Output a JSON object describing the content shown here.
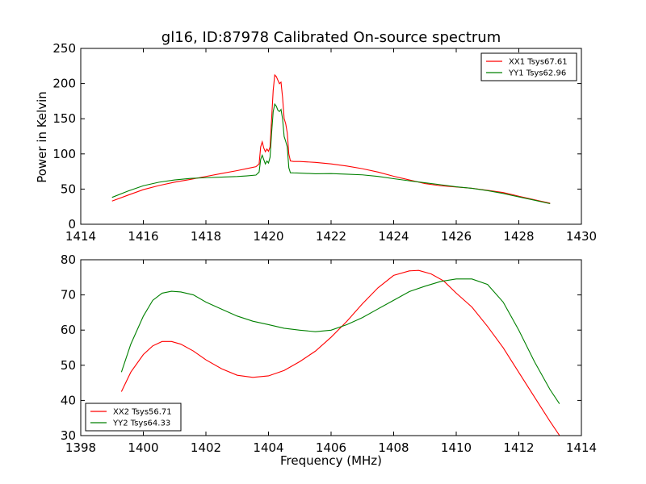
{
  "title": "gl16, ID:87978 Calibrated On-source spectrum",
  "colors": {
    "xx": "#ff0000",
    "yy": "#008000"
  },
  "chart_data": [
    {
      "type": "line",
      "xlim": [
        1414,
        1430
      ],
      "ylim": [
        0,
        250
      ],
      "xticks": [
        1414,
        1416,
        1418,
        1420,
        1422,
        1424,
        1426,
        1428,
        1430
      ],
      "yticks": [
        0,
        50,
        100,
        150,
        200,
        250
      ],
      "xlabel": "",
      "ylabel": "Power in Kelvin",
      "legend_position": "top-right",
      "series": [
        {
          "name": "XX1 Tsys67.61",
          "color": "#ff0000",
          "x": [
            1415.0,
            1415.5,
            1416.0,
            1416.5,
            1417.0,
            1417.5,
            1418.0,
            1418.5,
            1419.0,
            1419.3,
            1419.6,
            1419.7,
            1419.75,
            1419.8,
            1419.85,
            1419.9,
            1419.95,
            1420.0,
            1420.05,
            1420.1,
            1420.15,
            1420.2,
            1420.25,
            1420.3,
            1420.35,
            1420.4,
            1420.45,
            1420.5,
            1420.55,
            1420.6,
            1420.65,
            1420.7,
            1420.8,
            1421.0,
            1421.5,
            1422.0,
            1422.5,
            1423.0,
            1423.5,
            1424.0,
            1424.5,
            1425.0,
            1425.5,
            1426.0,
            1426.5,
            1427.0,
            1427.5,
            1428.0,
            1428.5,
            1429.0
          ],
          "y": [
            33,
            41,
            49,
            55,
            60,
            64,
            68,
            72,
            76,
            79,
            82,
            86,
            110,
            117,
            108,
            103,
            107,
            104,
            110,
            150,
            190,
            212,
            210,
            205,
            200,
            202,
            180,
            150,
            143,
            130,
            100,
            90,
            89,
            89,
            88,
            86,
            83,
            79,
            74,
            68,
            63,
            58,
            55,
            53,
            51,
            48,
            45,
            40,
            35,
            30
          ]
        },
        {
          "name": "YY1 Tsys62.96",
          "color": "#008000",
          "x": [
            1415.0,
            1415.5,
            1416.0,
            1416.5,
            1417.0,
            1417.5,
            1418.0,
            1418.5,
            1419.0,
            1419.3,
            1419.6,
            1419.7,
            1419.75,
            1419.8,
            1419.85,
            1419.9,
            1419.95,
            1420.0,
            1420.05,
            1420.1,
            1420.15,
            1420.2,
            1420.25,
            1420.3,
            1420.35,
            1420.4,
            1420.45,
            1420.5,
            1420.55,
            1420.6,
            1420.65,
            1420.7,
            1420.8,
            1421.0,
            1421.5,
            1422.0,
            1422.5,
            1423.0,
            1423.5,
            1424.0,
            1424.5,
            1425.0,
            1425.5,
            1426.0,
            1426.5,
            1427.0,
            1427.5,
            1428.0,
            1428.5,
            1429.0
          ],
          "y": [
            38,
            47,
            55,
            60,
            63,
            65,
            66,
            67,
            68,
            69,
            70,
            74,
            92,
            98,
            92,
            86,
            90,
            87,
            95,
            130,
            160,
            171,
            168,
            162,
            160,
            163,
            150,
            125,
            118,
            110,
            80,
            73,
            73,
            73,
            72,
            72,
            71,
            70,
            68,
            65,
            62,
            59,
            56,
            53,
            51,
            48,
            44,
            39,
            34,
            29
          ]
        }
      ]
    },
    {
      "type": "line",
      "xlim": [
        1398,
        1414
      ],
      "ylim": [
        30,
        80
      ],
      "xticks": [
        1398,
        1400,
        1402,
        1404,
        1406,
        1408,
        1410,
        1412,
        1414
      ],
      "yticks": [
        30,
        40,
        50,
        60,
        70,
        80
      ],
      "xlabel": "Frequency (MHz)",
      "ylabel": "",
      "legend_position": "bottom-left",
      "series": [
        {
          "name": "XX2 Tsys56.71",
          "color": "#ff0000",
          "x": [
            1399.3,
            1399.6,
            1400.0,
            1400.3,
            1400.6,
            1400.9,
            1401.2,
            1401.6,
            1402.0,
            1402.5,
            1403.0,
            1403.5,
            1404.0,
            1404.5,
            1405.0,
            1405.5,
            1406.0,
            1406.5,
            1407.0,
            1407.5,
            1408.0,
            1408.5,
            1408.8,
            1409.2,
            1409.6,
            1410.0,
            1410.5,
            1411.0,
            1411.5,
            1412.0,
            1412.5,
            1413.0,
            1413.3
          ],
          "y": [
            42.5,
            48,
            53,
            55.5,
            56.8,
            56.8,
            56,
            54,
            51.5,
            49,
            47.2,
            46.6,
            47,
            48.5,
            51,
            54,
            58,
            62.5,
            67.5,
            72,
            75.5,
            76.8,
            77,
            76,
            74,
            70.5,
            66.5,
            61,
            55,
            48,
            41,
            34,
            30
          ]
        },
        {
          "name": "YY2 Tsys64.33",
          "color": "#008000",
          "x": [
            1399.3,
            1399.6,
            1400.0,
            1400.3,
            1400.6,
            1400.9,
            1401.2,
            1401.6,
            1402.0,
            1402.5,
            1403.0,
            1403.5,
            1404.0,
            1404.5,
            1405.0,
            1405.5,
            1406.0,
            1406.5,
            1407.0,
            1407.5,
            1408.0,
            1408.5,
            1409.0,
            1409.5,
            1410.0,
            1410.5,
            1411.0,
            1411.5,
            1412.0,
            1412.5,
            1413.0,
            1413.3
          ],
          "y": [
            48,
            56,
            64,
            68.5,
            70.5,
            71,
            70.8,
            70,
            68,
            66,
            64,
            62.5,
            61.5,
            60.5,
            60,
            59.6,
            60,
            61.5,
            63.5,
            66,
            68.5,
            71,
            72.5,
            73.8,
            74.5,
            74.5,
            73,
            68,
            60,
            51,
            43,
            39
          ]
        }
      ]
    }
  ]
}
